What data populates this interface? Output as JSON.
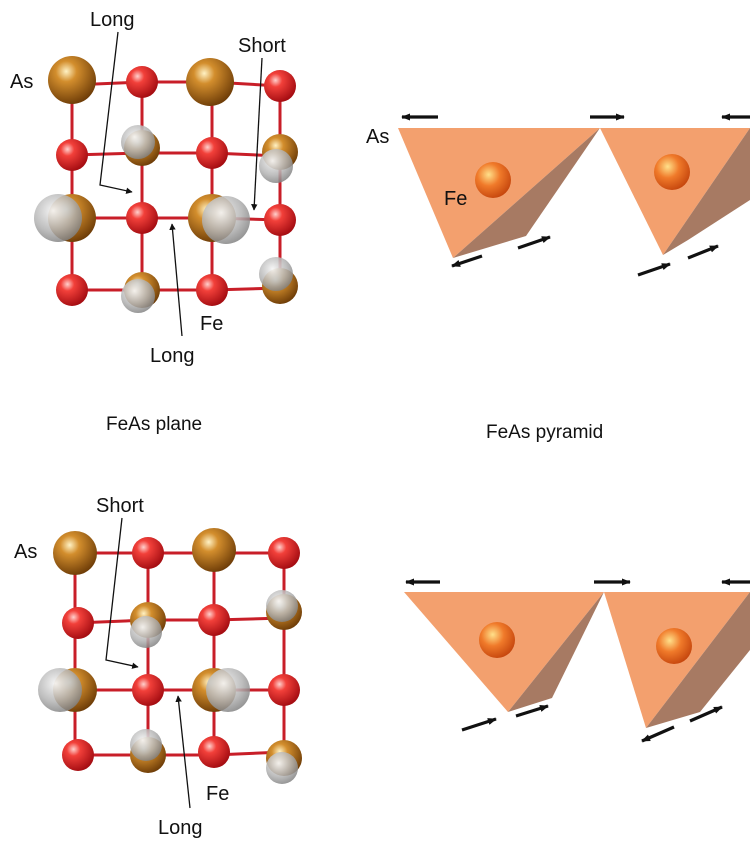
{
  "captions": {
    "plane": "FeAs plane",
    "pyramid": "FeAs pyramid"
  },
  "top_lattice": {
    "as_label": "As",
    "fe_label": "Fe",
    "annotations": [
      {
        "text": "Long"
      },
      {
        "text": "Short"
      },
      {
        "text": "Long"
      }
    ]
  },
  "bottom_lattice": {
    "as_label": "As",
    "fe_label": "Fe",
    "annotations": [
      {
        "text": "Short"
      },
      {
        "text": "Long"
      }
    ]
  },
  "top_pyramid": {
    "as_label": "As",
    "fe_label": "Fe"
  },
  "colors": {
    "fe": "#e8262a",
    "as": "#b06a10",
    "displaced_as": "#b8b8b8",
    "bond": "#c81e28",
    "pyramid_face": "#f3a06e",
    "pyramid_side": "#a77a63",
    "arrow": "#111111"
  }
}
